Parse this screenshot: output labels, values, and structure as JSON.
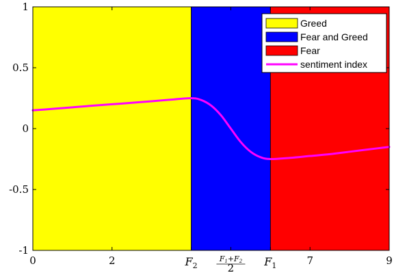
{
  "chart_data": {
    "type": "area",
    "title": "",
    "xlabel": "",
    "ylabel": "",
    "xlim": [
      0,
      9
    ],
    "ylim": [
      -1,
      1
    ],
    "grid": false,
    "legend_position": "top-right",
    "x_ticks": [
      {
        "value": 0,
        "label": "0"
      },
      {
        "value": 2,
        "label": "2"
      },
      {
        "value": 4,
        "label": "F",
        "sub": "2"
      },
      {
        "value": 5,
        "label": "(F1+F2)/2",
        "num_a": "F",
        "num_a_sub": "1",
        "num_op": "+",
        "num_b": "F",
        "num_b_sub": "2",
        "den": "2"
      },
      {
        "value": 6,
        "label": "F",
        "sub": "1"
      },
      {
        "value": 7,
        "label": "7"
      },
      {
        "value": 9,
        "label": "9"
      }
    ],
    "y_ticks": [
      {
        "value": -1,
        "label": "-1"
      },
      {
        "value": -0.5,
        "label": "-0.5"
      },
      {
        "value": 0,
        "label": "0"
      },
      {
        "value": 0.5,
        "label": "0.5"
      },
      {
        "value": 1,
        "label": "1"
      }
    ],
    "regions": [
      {
        "name": "Greed",
        "x_from": 0,
        "x_to": 4,
        "color": "#ffff00"
      },
      {
        "name": "Fear and Greed",
        "x_from": 4,
        "x_to": 6,
        "color": "#0000ff"
      },
      {
        "name": "Fear",
        "x_from": 6,
        "x_to": 9,
        "color": "#ff0000"
      }
    ],
    "series": [
      {
        "name": "sentiment index",
        "color": "#ff00ff",
        "x": [
          0,
          0.5,
          1,
          1.5,
          2,
          2.5,
          3,
          3.5,
          4,
          4.25,
          4.5,
          4.75,
          5,
          5.25,
          5.5,
          5.75,
          6,
          6.5,
          7,
          7.5,
          8,
          8.5,
          9
        ],
        "y": [
          0.15,
          0.162,
          0.175,
          0.188,
          0.2,
          0.212,
          0.225,
          0.238,
          0.25,
          0.235,
          0.19,
          0.11,
          0.0,
          -0.11,
          -0.19,
          -0.235,
          -0.25,
          -0.24,
          -0.225,
          -0.21,
          -0.19,
          -0.17,
          -0.15
        ]
      }
    ]
  }
}
